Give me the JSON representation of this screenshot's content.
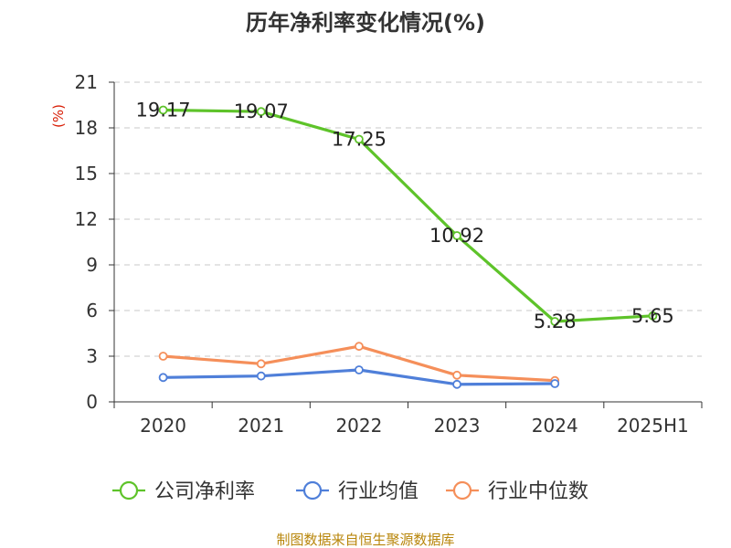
{
  "chart_data": {
    "type": "line",
    "title": "历年净利率变化情况(%)",
    "ylabel": "(%)",
    "xlabel": "",
    "categories": [
      "2020",
      "2021",
      "2022",
      "2023",
      "2024",
      "2025H1"
    ],
    "ylim": [
      0,
      21
    ],
    "yticks": [
      0,
      3,
      6,
      9,
      12,
      15,
      18,
      21
    ],
    "grid": true,
    "legend_position": "bottom",
    "series": [
      {
        "name": "公司净利率",
        "color": "#5ec32a",
        "values": [
          19.17,
          19.07,
          17.25,
          10.92,
          5.28,
          5.65
        ],
        "labels": [
          "19.17",
          "19.07",
          "17.25",
          "10.92",
          "5.28",
          "5.65"
        ],
        "show_labels": true
      },
      {
        "name": "行业均值",
        "color": "#4f7fd9",
        "values": [
          1.6,
          1.7,
          2.1,
          1.15,
          1.2,
          null
        ],
        "show_labels": false
      },
      {
        "name": "行业中位数",
        "color": "#f58f5a",
        "values": [
          3.0,
          2.5,
          3.65,
          1.75,
          1.4,
          null
        ],
        "show_labels": false
      }
    ],
    "source": "制图数据来自恒生聚源数据库"
  }
}
